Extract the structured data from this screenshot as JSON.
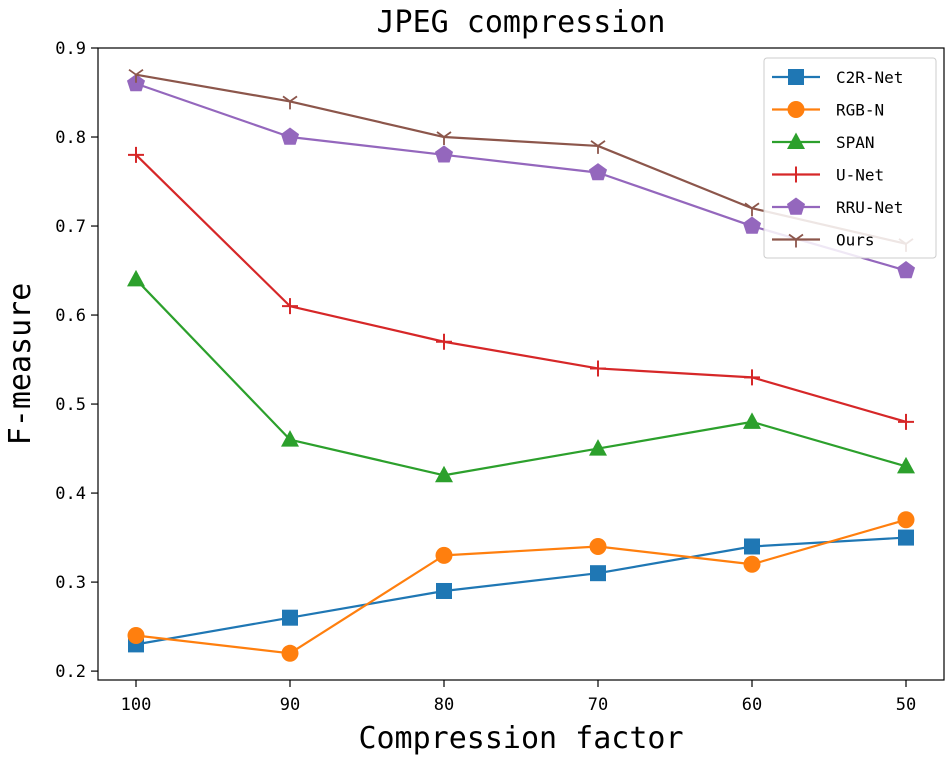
{
  "chart_data": {
    "type": "line",
    "title": "JPEG compression",
    "xlabel": "Compression factor",
    "ylabel": "F-measure",
    "categories": [
      "100",
      "90",
      "80",
      "70",
      "60",
      "50"
    ],
    "ylim": [
      0.19,
      0.9
    ],
    "yticks": [
      "0.2",
      "0.3",
      "0.4",
      "0.5",
      "0.6",
      "0.7",
      "0.8",
      "0.9"
    ],
    "legend_position": "top-right",
    "series": [
      {
        "name": "C2R-Net",
        "color": "#1f77b4",
        "marker": "square",
        "values": [
          0.23,
          0.26,
          0.29,
          0.31,
          0.34,
          0.35
        ]
      },
      {
        "name": "RGB-N",
        "color": "#ff7f0e",
        "marker": "circle",
        "values": [
          0.24,
          0.22,
          0.33,
          0.34,
          0.32,
          0.37
        ]
      },
      {
        "name": "SPAN",
        "color": "#2ca02c",
        "marker": "triangle",
        "values": [
          0.64,
          0.46,
          0.42,
          0.45,
          0.48,
          0.43
        ]
      },
      {
        "name": "U-Net",
        "color": "#d62728",
        "marker": "plus",
        "values": [
          0.78,
          0.61,
          0.57,
          0.54,
          0.53,
          0.48
        ]
      },
      {
        "name": "RRU-Net",
        "color": "#9467bd",
        "marker": "pentagon",
        "values": [
          0.86,
          0.8,
          0.78,
          0.76,
          0.7,
          0.65
        ]
      },
      {
        "name": "Ours",
        "color": "#8c564b",
        "marker": "tri_down",
        "values": [
          0.87,
          0.84,
          0.8,
          0.79,
          0.72,
          0.68
        ]
      }
    ]
  }
}
